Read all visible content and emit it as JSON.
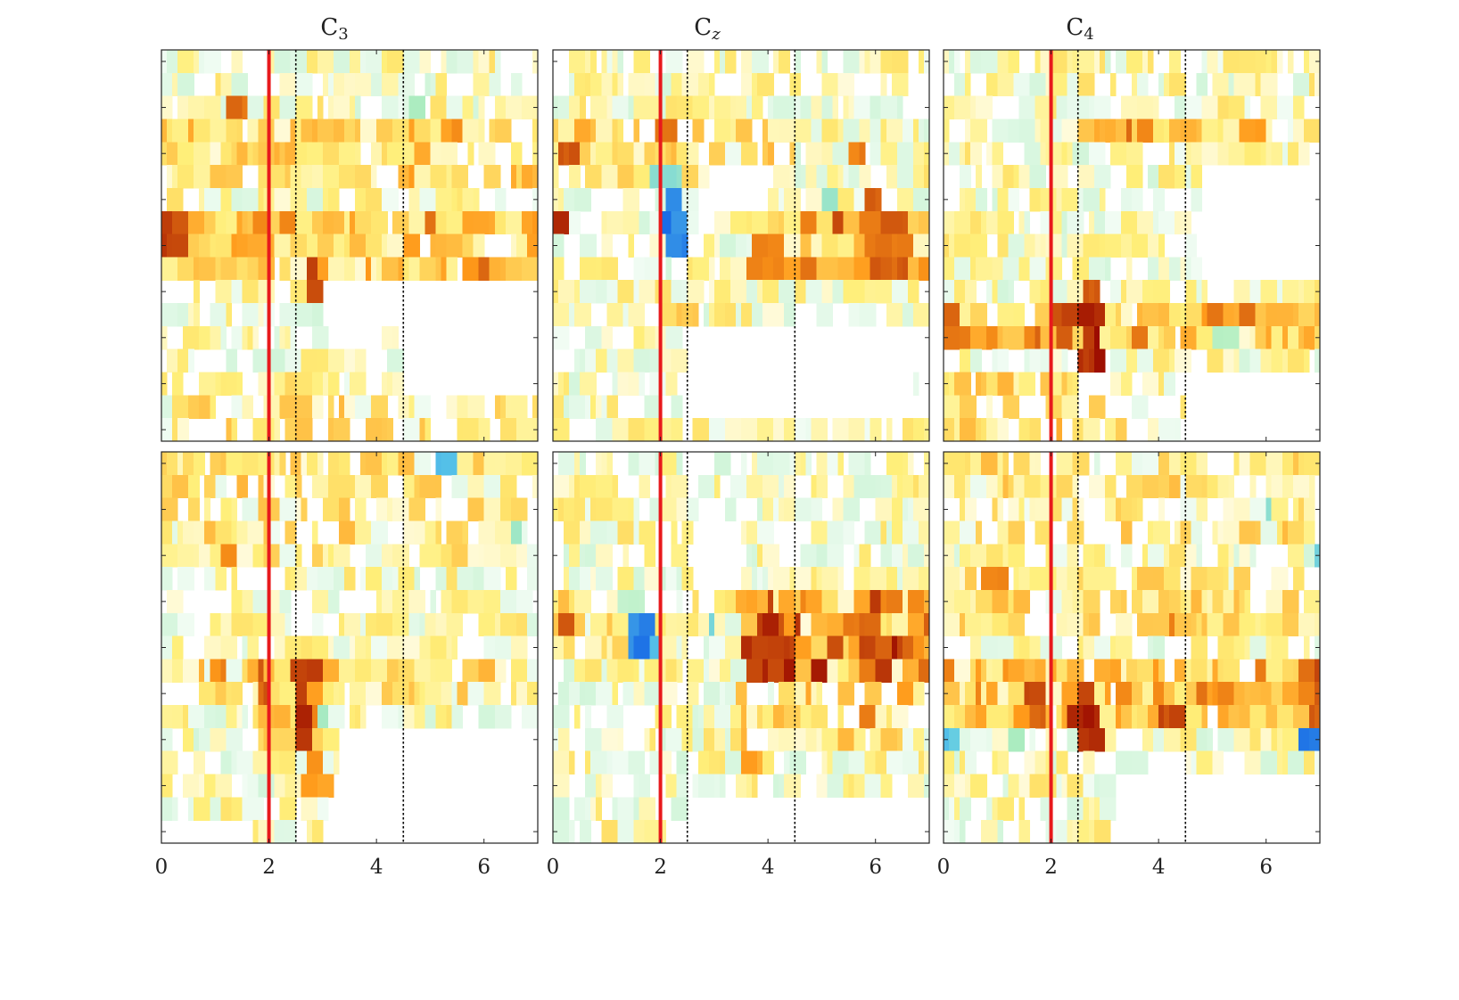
{
  "chart_data": {
    "type": "heatmap",
    "colormap": {
      "negative": "#1566e6",
      "near_zero": "#ffffff",
      "positive_low": "#ffef7a",
      "positive_mid": "#ff9a1a",
      "positive_high": "#9b0b00",
      "value_range": [
        -1,
        1
      ]
    },
    "x_tick_labels": [
      "0",
      "2",
      "4",
      "6"
    ],
    "x_ticks": [
      0,
      2,
      4,
      6
    ],
    "xlim": [
      0,
      7
    ],
    "rows_per_panel": 17,
    "markers": {
      "cue_line": {
        "x": 2,
        "color": "#e8191c"
      },
      "dotted_lines": [
        2.5,
        4.5
      ]
    },
    "columns": [
      {
        "title_base": "C",
        "title_sub": "3",
        "title_sub_italic": false
      },
      {
        "title_base": "C",
        "title_sub": "z",
        "title_sub_italic": true
      },
      {
        "title_base": "C",
        "title_sub": "4",
        "title_sub_italic": false
      }
    ],
    "panels": [
      {
        "column": 0,
        "row": 0,
        "seed": 11,
        "active_rows": [
          0,
          16
        ],
        "base_bands": [
          {
            "rows": [
              7,
              9
            ],
            "x": [
              0,
              7
            ],
            "amp": 0.35
          },
          {
            "rows": [
              3,
              5
            ],
            "x": [
              0,
              7
            ],
            "amp": 0.22
          },
          {
            "rows": [
              14,
              16
            ],
            "x": [
              0.2,
              7
            ],
            "amp": 0.16
          }
        ],
        "hotspots": [
          {
            "row": 2,
            "x": 1.5,
            "w": 0.2,
            "h": 1,
            "v": 0.8
          },
          {
            "row": 7,
            "x": 0.15,
            "w": 0.4,
            "h": 2,
            "v": 0.9
          },
          {
            "row": 8,
            "x": 1.5,
            "w": 0.5,
            "h": 1,
            "v": 0.6
          },
          {
            "row": 9,
            "x": 2.8,
            "w": 0.2,
            "h": 2,
            "v": 0.95
          },
          {
            "row": 12,
            "x": 4.3,
            "w": 0.2,
            "h": 1,
            "v": 0.75
          },
          {
            "row": 3,
            "x": 5.4,
            "w": 0.3,
            "h": 1,
            "v": 0.65
          },
          {
            "row": 9,
            "x": 6.3,
            "w": 0.4,
            "h": 1,
            "v": 0.55
          },
          {
            "row": 16,
            "x": 4.0,
            "w": 0.5,
            "h": 1,
            "v": 0.45
          },
          {
            "row": 7,
            "x": 6.9,
            "w": 0.2,
            "h": 1,
            "v": 0.65
          }
        ],
        "coldspots": [
          {
            "row": 2,
            "x": 4.8,
            "w": 0.1,
            "h": 1,
            "v": -0.45
          },
          {
            "row": 1,
            "x": 3.9,
            "w": 0.08,
            "h": 1,
            "v": -0.35
          }
        ],
        "blank_regions": [
          {
            "rows": [
              10,
              12
            ],
            "x": [
              3.0,
              7.0
            ]
          },
          {
            "rows": [
              13,
              14
            ],
            "x": [
              4.6,
              7.0
            ]
          }
        ]
      },
      {
        "column": 1,
        "row": 0,
        "seed": 23,
        "active_rows": [
          0,
          16
        ],
        "base_bands": [
          {
            "rows": [
              7,
              9
            ],
            "x": [
              3.7,
              7
            ],
            "amp": 0.42
          },
          {
            "rows": [
              3,
              5
            ],
            "x": [
              0,
              4.5
            ],
            "amp": 0.24
          },
          {
            "rows": [
              16,
              16
            ],
            "x": [
              1.2,
              7
            ],
            "amp": 0.14
          }
        ],
        "hotspots": [
          {
            "row": 4,
            "x": 0.35,
            "w": 0.35,
            "h": 1,
            "v": 0.85
          },
          {
            "row": 7,
            "x": 0.15,
            "w": 0.3,
            "h": 1,
            "v": 0.95
          },
          {
            "row": 3,
            "x": 2.1,
            "w": 0.3,
            "h": 1,
            "v": 0.75
          },
          {
            "row": 8,
            "x": 4.1,
            "w": 0.6,
            "h": 2,
            "v": 0.75
          },
          {
            "row": 7,
            "x": 6.2,
            "w": 0.8,
            "h": 3,
            "v": 0.8
          },
          {
            "row": 6,
            "x": 6.0,
            "w": 0.2,
            "h": 1,
            "v": 0.85
          },
          {
            "row": 4,
            "x": 5.7,
            "w": 0.2,
            "h": 1,
            "v": 0.75
          },
          {
            "row": 11,
            "x": 2.5,
            "w": 0.3,
            "h": 1,
            "v": 0.45
          }
        ],
        "coldspots": [
          {
            "row": 6,
            "x": 2.25,
            "w": 0.35,
            "h": 3,
            "v": -1.0
          },
          {
            "row": 5,
            "x": 2.1,
            "w": 0.5,
            "h": 1,
            "v": -0.55
          },
          {
            "row": 7,
            "x": 3.3,
            "w": 0.15,
            "h": 1,
            "v": -0.9
          },
          {
            "row": 6,
            "x": 5.2,
            "w": 0.2,
            "h": 1,
            "v": -0.5
          },
          {
            "row": 14,
            "x": 6.7,
            "w": 0.05,
            "h": 1,
            "v": -0.9
          }
        ],
        "blank_regions": [
          {
            "rows": [
              1,
              2
            ],
            "x": [
              6.5,
              7.0
            ]
          },
          {
            "rows": [
              12,
              15
            ],
            "x": [
              2.5,
              7.0
            ]
          },
          {
            "rows": [
              5,
              6
            ],
            "x": [
              2.7,
              4.0
            ]
          }
        ]
      },
      {
        "column": 2,
        "row": 0,
        "seed": 37,
        "active_rows": [
          0,
          16
        ],
        "base_bands": [
          {
            "rows": [
              11,
              12
            ],
            "x": [
              0,
              7
            ],
            "amp": 0.38
          },
          {
            "rows": [
              3,
              3
            ],
            "x": [
              2.5,
              6.2
            ],
            "amp": 0.36
          },
          {
            "rows": [
              14,
              16
            ],
            "x": [
              0,
              4.0
            ],
            "amp": 0.18
          }
        ],
        "hotspots": [
          {
            "row": 11,
            "x": 0.15,
            "w": 0.3,
            "h": 2,
            "v": 0.75
          },
          {
            "row": 11,
            "x": 2.75,
            "w": 0.35,
            "h": 3,
            "v": 1.0
          },
          {
            "row": 10,
            "x": 2.8,
            "w": 0.3,
            "h": 1,
            "v": 0.8
          },
          {
            "row": 11,
            "x": 2.25,
            "w": 0.3,
            "h": 2,
            "v": 0.85
          },
          {
            "row": 12,
            "x": 1.6,
            "w": 0.35,
            "h": 1,
            "v": 0.7
          },
          {
            "row": 3,
            "x": 3.0,
            "w": 0.5,
            "h": 1,
            "v": 0.55
          }
        ],
        "coldspots": [
          {
            "row": 12,
            "x": 5.2,
            "w": 0.25,
            "h": 1,
            "v": -0.4
          }
        ],
        "blank_regions": [
          {
            "rows": [
              14,
              16
            ],
            "x": [
              4.5,
              7.0
            ]
          },
          {
            "rows": [
              5,
              9
            ],
            "x": [
              4.8,
              7.0
            ]
          }
        ]
      },
      {
        "column": 0,
        "row": 1,
        "seed": 51,
        "active_rows": [
          0,
          16
        ],
        "base_bands": [
          {
            "rows": [
              9,
              12
            ],
            "x": [
              1.7,
              3.2
            ],
            "amp": 0.42
          },
          {
            "rows": [
              0,
              4
            ],
            "x": [
              0,
              7
            ],
            "amp": 0.16
          },
          {
            "rows": [
              9,
              10
            ],
            "x": [
              0,
              6.0
            ],
            "amp": 0.16
          }
        ],
        "hotspots": [
          {
            "row": 10,
            "x": 2.65,
            "w": 0.25,
            "h": 3,
            "v": 1.0
          },
          {
            "row": 9,
            "x": 2.6,
            "w": 0.3,
            "h": 1,
            "v": 0.85
          },
          {
            "row": 13,
            "x": 2.9,
            "w": 0.3,
            "h": 2,
            "v": 0.65
          },
          {
            "row": 4,
            "x": 1.2,
            "w": 0.25,
            "h": 1,
            "v": 0.7
          },
          {
            "row": 9,
            "x": 1.1,
            "w": 0.3,
            "h": 1,
            "v": 0.7
          },
          {
            "row": 15,
            "x": 4.2,
            "w": 0.3,
            "h": 1,
            "v": 0.45
          },
          {
            "row": 9,
            "x": 6.0,
            "w": 0.2,
            "h": 1,
            "v": 0.5
          }
        ],
        "coldspots": [
          {
            "row": 0,
            "x": 5.3,
            "w": 0.2,
            "h": 1,
            "v": -0.85
          },
          {
            "row": 2,
            "x": 6.0,
            "w": 0.1,
            "h": 1,
            "v": -0.8
          },
          {
            "row": 3,
            "x": 6.6,
            "w": 0.2,
            "h": 1,
            "v": -0.5
          },
          {
            "row": 4,
            "x": 6.6,
            "w": 0.1,
            "h": 1,
            "v": -0.6
          },
          {
            "row": 11,
            "x": 3.05,
            "w": 0.1,
            "h": 1,
            "v": -0.45
          }
        ],
        "blank_regions": [
          {
            "rows": [
              12,
              16
            ],
            "x": [
              3.3,
              7.0
            ]
          },
          {
            "rows": [
              16,
              16
            ],
            "x": [
              0,
              1.4
            ]
          }
        ]
      },
      {
        "column": 1,
        "row": 1,
        "seed": 67,
        "active_rows": [
          0,
          16
        ],
        "base_bands": [
          {
            "rows": [
              6,
              9
            ],
            "x": [
              3.5,
              7
            ],
            "amp": 0.55
          },
          {
            "rows": [
              6,
              8
            ],
            "x": [
              0,
              1.5
            ],
            "amp": 0.2
          },
          {
            "rows": [
              10,
              12
            ],
            "x": [
              3.5,
              6.6
            ],
            "amp": 0.24
          }
        ],
        "hotspots": [
          {
            "row": 7,
            "x": 4.0,
            "w": 0.25,
            "h": 1,
            "v": 1.0
          },
          {
            "row": 8,
            "x": 4.2,
            "w": 0.4,
            "h": 2,
            "v": 0.9
          },
          {
            "row": 7,
            "x": 5.9,
            "w": 0.25,
            "h": 2,
            "v": 0.85
          },
          {
            "row": 8,
            "x": 6.5,
            "w": 0.3,
            "h": 1,
            "v": 0.8
          },
          {
            "row": 6,
            "x": 6.2,
            "w": 0.3,
            "h": 1,
            "v": 0.75
          },
          {
            "row": 7,
            "x": 0.25,
            "w": 0.25,
            "h": 1,
            "v": 0.8
          },
          {
            "row": 11,
            "x": 5.8,
            "w": 0.3,
            "h": 1,
            "v": 0.75
          },
          {
            "row": 13,
            "x": 3.7,
            "w": 0.3,
            "h": 1,
            "v": 0.6
          }
        ],
        "coldspots": [
          {
            "row": 7,
            "x": 1.65,
            "w": 0.35,
            "h": 2,
            "v": -1.0
          },
          {
            "row": 8,
            "x": 1.95,
            "w": 0.1,
            "h": 1,
            "v": -0.85
          },
          {
            "row": 7,
            "x": 2.95,
            "w": 0.15,
            "h": 1,
            "v": -0.6
          },
          {
            "row": 6,
            "x": 1.5,
            "w": 0.5,
            "h": 1,
            "v": -0.35
          }
        ],
        "blank_regions": [
          {
            "rows": [
              3,
              5
            ],
            "x": [
              2.6,
              3.5
            ]
          },
          {
            "rows": [
              15,
              16
            ],
            "x": [
              2.5,
              7.0
            ]
          }
        ]
      },
      {
        "column": 2,
        "row": 1,
        "seed": 83,
        "active_rows": [
          0,
          16
        ],
        "base_bands": [
          {
            "rows": [
              9,
              11
            ],
            "x": [
              0,
              7
            ],
            "amp": 0.38
          },
          {
            "rows": [
              0,
              3
            ],
            "x": [
              0,
              7
            ],
            "amp": 0.14
          },
          {
            "rows": [
              5,
              7
            ],
            "x": [
              0,
              7
            ],
            "amp": 0.18
          }
        ],
        "hotspots": [
          {
            "row": 11,
            "x": 2.65,
            "w": 0.35,
            "h": 2,
            "v": 1.0
          },
          {
            "row": 10,
            "x": 2.6,
            "w": 0.3,
            "h": 1,
            "v": 0.85
          },
          {
            "row": 10,
            "x": 1.75,
            "w": 0.3,
            "h": 2,
            "v": 0.85
          },
          {
            "row": 11,
            "x": 4.15,
            "w": 0.35,
            "h": 1,
            "v": 0.9
          },
          {
            "row": 9,
            "x": 6.9,
            "w": 0.2,
            "h": 3,
            "v": 0.85
          },
          {
            "row": 10,
            "x": 5.2,
            "w": 0.25,
            "h": 1,
            "v": 0.7
          },
          {
            "row": 5,
            "x": 1.0,
            "w": 0.2,
            "h": 1,
            "v": 0.7
          },
          {
            "row": 7,
            "x": 4.3,
            "w": 0.2,
            "h": 1,
            "v": 0.7
          }
        ],
        "coldspots": [
          {
            "row": 12,
            "x": 0.2,
            "w": 0.2,
            "h": 1,
            "v": -0.75
          },
          {
            "row": 12,
            "x": 6.75,
            "w": 0.25,
            "h": 1,
            "v": -1.0
          },
          {
            "row": 12,
            "x": 1.4,
            "w": 0.2,
            "h": 1,
            "v": -0.45
          },
          {
            "row": 12,
            "x": 5.4,
            "w": 0.2,
            "h": 1,
            "v": -0.55
          },
          {
            "row": 2,
            "x": 6.0,
            "w": 0.08,
            "h": 1,
            "v": -0.6
          },
          {
            "row": 4,
            "x": 6.95,
            "w": 0.08,
            "h": 1,
            "v": -0.65
          }
        ],
        "blank_regions": [
          {
            "rows": [
              14,
              16
            ],
            "x": [
              3.2,
              7.0
            ]
          }
        ]
      }
    ]
  }
}
